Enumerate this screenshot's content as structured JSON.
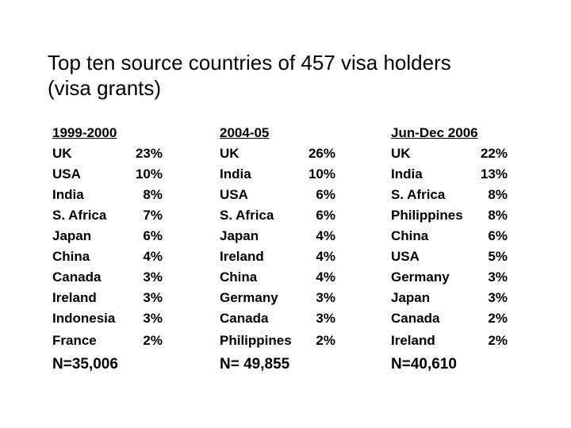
{
  "title": [
    "Top ten source countries of 457 visa holders",
    "(visa grants)"
  ],
  "columns": [
    {
      "heading": "1999-2000",
      "rows": [
        [
          "UK",
          "23%"
        ],
        [
          "USA",
          "10%"
        ],
        [
          "India",
          "8%"
        ],
        [
          "S. Africa",
          "7%"
        ],
        [
          "Japan",
          "6%"
        ],
        [
          "China",
          "4%"
        ],
        [
          "Canada",
          "3%"
        ],
        [
          "Ireland",
          "3%"
        ],
        [
          "Indonesia",
          "3%"
        ],
        [
          "France",
          "2%"
        ]
      ],
      "total": "N=35,006"
    },
    {
      "heading": "2004-05",
      "rows": [
        [
          "UK",
          "26%"
        ],
        [
          "India",
          "10%"
        ],
        [
          "USA",
          "6%"
        ],
        [
          "S. Africa",
          "6%"
        ],
        [
          "Japan",
          "4%"
        ],
        [
          "Ireland",
          "4%"
        ],
        [
          "China",
          "4%"
        ],
        [
          "Germany",
          "3%"
        ],
        [
          "Canada",
          "3%"
        ],
        [
          "Philippines",
          "2%"
        ]
      ],
      "total": "N= 49,855"
    },
    {
      "heading": "Jun-Dec 2006",
      "rows": [
        [
          "UK",
          "22%"
        ],
        [
          "India",
          "13%"
        ],
        [
          "S. Africa",
          "8%"
        ],
        [
          "Philippines",
          "8%"
        ],
        [
          "China",
          "6%"
        ],
        [
          "USA",
          "5%"
        ],
        [
          "Germany",
          "3%"
        ],
        [
          "Japan",
          "3%"
        ],
        [
          "Canada",
          "2%"
        ],
        [
          "Ireland",
          "2%"
        ]
      ],
      "total": "N=40,610"
    }
  ]
}
